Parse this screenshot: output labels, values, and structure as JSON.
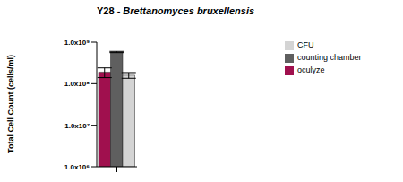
{
  "chart_data": {
    "type": "bar",
    "title": "Y28 - Brettanomyces bruxellensis",
    "y_label": "Total Cell Count (cells/ml)",
    "categories": [
      null
    ],
    "series": [
      {
        "name": "oculyze",
        "color": "#a0104e",
        "values": [
          190000000
        ],
        "errors": [
          50000000
        ]
      },
      {
        "name": "counting chamber",
        "color": "#5f5f5f",
        "values": [
          580000000
        ],
        "errors": [
          20000000
        ]
      },
      {
        "name": "CFU",
        "color": "#d4d4d4",
        "values": [
          160000000
        ],
        "errors": [
          25000000
        ]
      }
    ],
    "log": "y",
    "ylim": [
      1000000,
      1000000000
    ],
    "yticks": [
      {
        "value": 1000000,
        "label": "1.0x10⁶"
      },
      {
        "value": 10000000,
        "label": "1.0x10⁷"
      },
      {
        "value": 100000000,
        "label": "1.0x10⁸"
      },
      {
        "value": 1000000000,
        "label": "1.0x10⁹"
      }
    ],
    "legend": "upper right",
    "grid": false
  }
}
